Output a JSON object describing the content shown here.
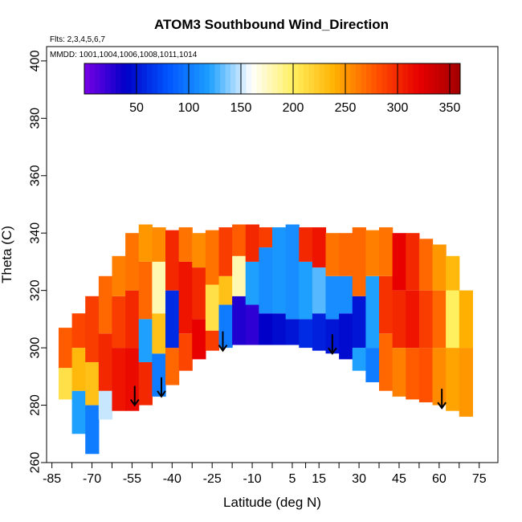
{
  "chart_data": {
    "type": "heatmap",
    "title": "ATOM3 Southbound Wind_Direction",
    "flights_label": "Flts: 2,3,4,5,6,7",
    "dates_label": "MMDD: 1001,1004,1006,1008,1011,1014",
    "xlabel": "Latitude (deg N)",
    "ylabel": "Theta (C)",
    "xlim": [
      -87,
      82
    ],
    "ylim": [
      260,
      405
    ],
    "x_ticks": [
      -85,
      -70,
      -55,
      -40,
      -25,
      -10,
      5,
      15,
      30,
      45,
      60,
      75
    ],
    "x_tick_labels": [
      "-85",
      "-70",
      "-55",
      "-40",
      "-25",
      "-10",
      "5",
      "15",
      "30",
      "45",
      "60",
      "75"
    ],
    "y_ticks": [
      260,
      280,
      300,
      320,
      340,
      360,
      380,
      400
    ],
    "y_tick_labels": [
      "260",
      "280",
      "300",
      "320",
      "340",
      "360",
      "380",
      "400"
    ],
    "colorbar": {
      "range": [
        0,
        360
      ],
      "ticks": [
        50,
        100,
        150,
        200,
        250,
        300,
        350
      ],
      "tick_labels": [
        "50",
        "100",
        "150",
        "200",
        "250",
        "300",
        "350"
      ],
      "colors": [
        "#7a00e6",
        "#0000c8",
        "#0055ff",
        "#1ea0ff",
        "#ffffff",
        "#fff060",
        "#ffb000",
        "#ff5000",
        "#e80000",
        "#a00000"
      ]
    },
    "arrows": [
      {
        "lat": -54,
        "theta": 280
      },
      {
        "lat": -44,
        "theta": 283
      },
      {
        "lat": -21,
        "theta": 299
      },
      {
        "lat": 20,
        "theta": 298
      },
      {
        "lat": 61,
        "theta": 279
      }
    ],
    "columns": [
      {
        "lat": -80,
        "bottom": 282,
        "top": 307,
        "regions": [
          [
            282,
            293,
            210
          ],
          [
            293,
            307,
            275
          ]
        ]
      },
      {
        "lat": -75,
        "bottom": 270,
        "top": 312,
        "regions": [
          [
            270,
            285,
            120
          ],
          [
            285,
            300,
            235
          ],
          [
            300,
            312,
            285
          ]
        ]
      },
      {
        "lat": -70,
        "bottom": 263,
        "top": 318,
        "regions": [
          [
            263,
            280,
            100
          ],
          [
            280,
            295,
            230
          ],
          [
            295,
            318,
            290
          ]
        ]
      },
      {
        "lat": -65,
        "bottom": 275,
        "top": 325,
        "regions": [
          [
            275,
            285,
            150
          ],
          [
            285,
            305,
            300
          ],
          [
            305,
            325,
            270
          ]
        ]
      },
      {
        "lat": -60,
        "bottom": 278,
        "top": 332,
        "regions": [
          [
            278,
            300,
            310
          ],
          [
            300,
            318,
            290
          ],
          [
            318,
            332,
            260
          ]
        ]
      },
      {
        "lat": -55,
        "bottom": 278,
        "top": 340,
        "regions": [
          [
            278,
            300,
            315
          ],
          [
            300,
            320,
            300
          ],
          [
            320,
            340,
            265
          ]
        ]
      },
      {
        "lat": -50,
        "bottom": 280,
        "top": 343,
        "regions": [
          [
            280,
            295,
            300
          ],
          [
            295,
            310,
            120
          ],
          [
            310,
            330,
            270
          ],
          [
            330,
            343,
            250
          ]
        ]
      },
      {
        "lat": -45,
        "bottom": 283,
        "top": 342,
        "regions": [
          [
            283,
            298,
            100
          ],
          [
            298,
            312,
            230
          ],
          [
            312,
            330,
            180
          ],
          [
            330,
            342,
            255
          ]
        ]
      },
      {
        "lat": -40,
        "bottom": 287,
        "top": 341,
        "regions": [
          [
            287,
            300,
            270
          ],
          [
            300,
            320,
            60
          ],
          [
            320,
            341,
            300
          ]
        ]
      },
      {
        "lat": -35,
        "bottom": 292,
        "top": 342,
        "regions": [
          [
            292,
            305,
            285
          ],
          [
            305,
            330,
            310
          ],
          [
            330,
            342,
            265
          ]
        ]
      },
      {
        "lat": -30,
        "bottom": 296,
        "top": 340,
        "regions": [
          [
            296,
            310,
            320
          ],
          [
            310,
            328,
            300
          ],
          [
            328,
            340,
            255
          ]
        ]
      },
      {
        "lat": -25,
        "bottom": 299,
        "top": 341,
        "regions": [
          [
            299,
            306,
            290
          ],
          [
            306,
            322,
            210
          ],
          [
            322,
            341,
            265
          ]
        ]
      },
      {
        "lat": -20,
        "bottom": 300,
        "top": 342,
        "regions": [
          [
            300,
            315,
            100
          ],
          [
            315,
            325,
            230
          ],
          [
            325,
            342,
            290
          ]
        ]
      },
      {
        "lat": -15,
        "bottom": 301,
        "top": 343,
        "regions": [
          [
            301,
            318,
            30
          ],
          [
            318,
            332,
            180
          ],
          [
            332,
            343,
            275
          ]
        ]
      },
      {
        "lat": -10,
        "bottom": 301,
        "top": 343,
        "regions": [
          [
            301,
            315,
            25
          ],
          [
            315,
            330,
            120
          ],
          [
            330,
            343,
            300
          ]
        ]
      },
      {
        "lat": -5,
        "bottom": 301,
        "top": 342,
        "regions": [
          [
            301,
            312,
            40
          ],
          [
            312,
            335,
            110
          ],
          [
            335,
            342,
            290
          ]
        ]
      },
      {
        "lat": 0,
        "bottom": 301,
        "top": 342,
        "regions": [
          [
            301,
            312,
            45
          ],
          [
            312,
            342,
            115
          ]
        ]
      },
      {
        "lat": 5,
        "bottom": 301,
        "top": 343,
        "regions": [
          [
            301,
            310,
            50
          ],
          [
            310,
            343,
            110
          ]
        ]
      },
      {
        "lat": 10,
        "bottom": 300,
        "top": 342,
        "regions": [
          [
            300,
            310,
            60
          ],
          [
            310,
            330,
            120
          ],
          [
            330,
            342,
            300
          ]
        ]
      },
      {
        "lat": 15,
        "bottom": 299,
        "top": 342,
        "regions": [
          [
            299,
            312,
            55
          ],
          [
            312,
            328,
            130
          ],
          [
            328,
            342,
            310
          ]
        ]
      },
      {
        "lat": 20,
        "bottom": 298,
        "top": 340,
        "regions": [
          [
            298,
            310,
            50
          ],
          [
            310,
            325,
            110
          ],
          [
            325,
            340,
            265
          ]
        ]
      },
      {
        "lat": 25,
        "bottom": 296,
        "top": 340,
        "regions": [
          [
            296,
            312,
            45
          ],
          [
            312,
            325,
            110
          ],
          [
            325,
            340,
            270
          ]
        ]
      },
      {
        "lat": 30,
        "bottom": 292,
        "top": 342,
        "regions": [
          [
            292,
            300,
            120
          ],
          [
            300,
            318,
            50
          ],
          [
            318,
            342,
            270
          ]
        ]
      },
      {
        "lat": 35,
        "bottom": 288,
        "top": 341,
        "regions": [
          [
            288,
            300,
            100
          ],
          [
            300,
            325,
            120
          ],
          [
            325,
            341,
            260
          ]
        ]
      },
      {
        "lat": 40,
        "bottom": 285,
        "top": 342,
        "regions": [
          [
            285,
            305,
            270
          ],
          [
            305,
            325,
            295
          ],
          [
            325,
            342,
            265
          ]
        ]
      },
      {
        "lat": 45,
        "bottom": 283,
        "top": 340,
        "regions": [
          [
            283,
            300,
            260
          ],
          [
            300,
            320,
            300
          ],
          [
            320,
            340,
            320
          ]
        ]
      },
      {
        "lat": 50,
        "bottom": 282,
        "top": 340,
        "regions": [
          [
            282,
            300,
            275
          ],
          [
            300,
            320,
            310
          ],
          [
            320,
            340,
            300
          ]
        ]
      },
      {
        "lat": 55,
        "bottom": 281,
        "top": 338,
        "regions": [
          [
            281,
            300,
            280
          ],
          [
            300,
            320,
            290
          ],
          [
            320,
            338,
            270
          ]
        ]
      },
      {
        "lat": 60,
        "bottom": 280,
        "top": 336,
        "regions": [
          [
            280,
            300,
            255
          ],
          [
            300,
            320,
            270
          ],
          [
            320,
            336,
            250
          ]
        ]
      },
      {
        "lat": 65,
        "bottom": 278,
        "top": 332,
        "regions": [
          [
            278,
            300,
            245
          ],
          [
            300,
            320,
            200
          ],
          [
            320,
            332,
            235
          ]
        ]
      },
      {
        "lat": 70,
        "bottom": 276,
        "top": 320,
        "regions": [
          [
            276,
            300,
            250
          ],
          [
            300,
            320,
            240
          ]
        ]
      }
    ]
  }
}
